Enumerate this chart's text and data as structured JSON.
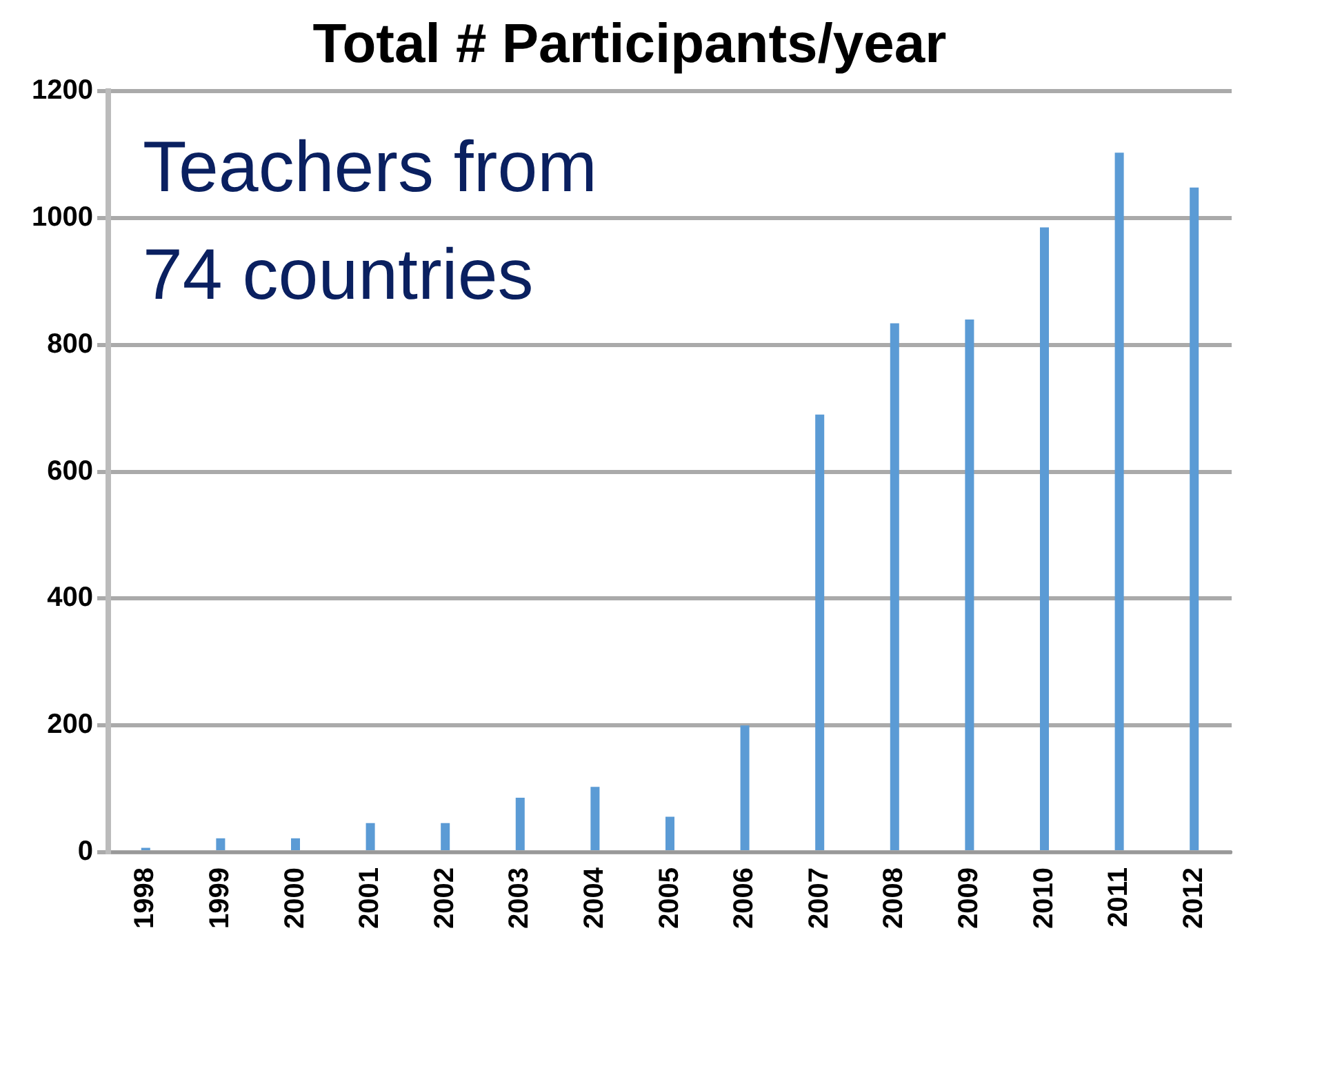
{
  "chart_data": {
    "type": "bar",
    "title": "Total # Participants/year",
    "categories": [
      "1998",
      "1999",
      "2000",
      "2001",
      "2002",
      "2003",
      "2004",
      "2005",
      "2006",
      "2007",
      "2008",
      "2009",
      "2010",
      "2011",
      "2012"
    ],
    "values": [
      7,
      22,
      22,
      46,
      46,
      86,
      103,
      56,
      200,
      690,
      834,
      840,
      985,
      1103,
      1048
    ],
    "color": "#5b9bd5",
    "ylim": [
      0,
      1200
    ],
    "yticks": [
      0,
      200,
      400,
      600,
      800,
      1000,
      1200
    ],
    "grid": "y",
    "annotations": [
      "Teachers from\n74 countries"
    ]
  }
}
